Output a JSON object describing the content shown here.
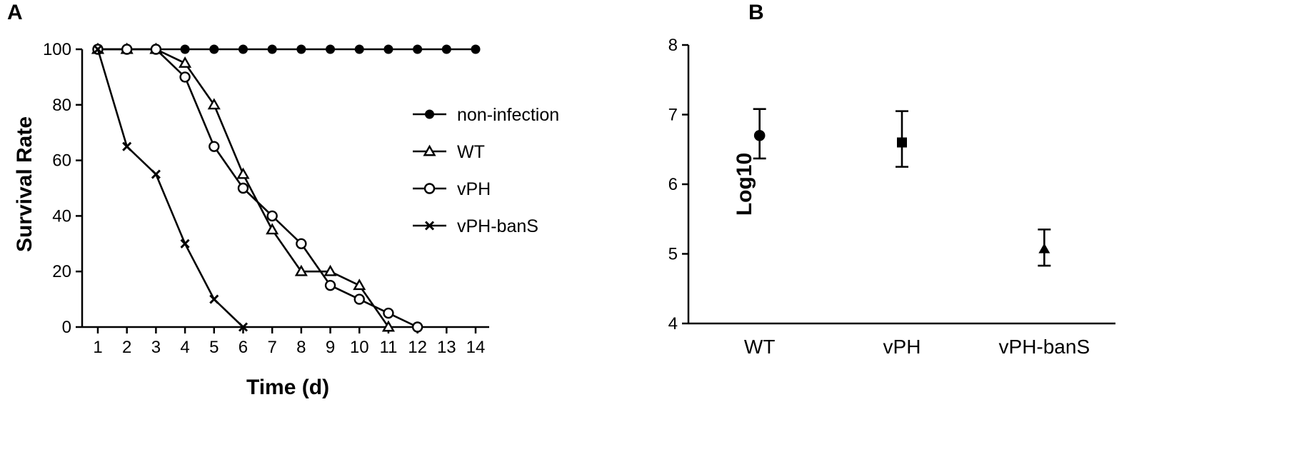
{
  "chart_data": [
    {
      "panel": "A",
      "type": "line",
      "xlabel": "Time (d)",
      "ylabel": "Survival Rate",
      "xlim": [
        1,
        14
      ],
      "ylim": [
        0,
        100
      ],
      "x_ticks": [
        "1",
        "2",
        "3",
        "4",
        "5",
        "6",
        "7",
        "8",
        "9",
        "10",
        "11",
        "12",
        "13",
        "14"
      ],
      "y_ticks": [
        "0",
        "20",
        "40",
        "60",
        "80",
        "100"
      ],
      "grid": false,
      "legend_position": "right",
      "series": [
        {
          "name": "non-infection",
          "marker": "filled-circle",
          "x": [
            1,
            2,
            3,
            4,
            5,
            6,
            7,
            8,
            9,
            10,
            11,
            12,
            13,
            14
          ],
          "y": [
            100,
            100,
            100,
            100,
            100,
            100,
            100,
            100,
            100,
            100,
            100,
            100,
            100,
            100
          ]
        },
        {
          "name": "WT",
          "marker": "open-triangle",
          "x": [
            1,
            2,
            3,
            4,
            5,
            6,
            7,
            8,
            9,
            10,
            11
          ],
          "y": [
            100,
            100,
            100,
            95,
            80,
            55,
            35,
            20,
            20,
            15,
            0
          ]
        },
        {
          "name": "vPH",
          "marker": "open-circle",
          "x": [
            1,
            2,
            3,
            4,
            5,
            6,
            7,
            8,
            9,
            10,
            11,
            12
          ],
          "y": [
            100,
            100,
            100,
            90,
            65,
            50,
            40,
            30,
            15,
            10,
            5,
            0
          ]
        },
        {
          "name": "vPH-banS",
          "marker": "x",
          "x": [
            1,
            2,
            3,
            4,
            5,
            6
          ],
          "y": [
            100,
            65,
            55,
            30,
            10,
            0
          ]
        }
      ]
    },
    {
      "panel": "B",
      "type": "scatter",
      "xlabel": "",
      "ylabel": "Log10",
      "ylim": [
        4,
        8
      ],
      "y_ticks": [
        "4",
        "5",
        "6",
        "7",
        "8"
      ],
      "categories": [
        "WT",
        "vPH",
        "vPH-banS"
      ],
      "grid": false,
      "points": [
        {
          "category": "WT",
          "marker": "filled-circle",
          "mean": 6.7,
          "upper": 7.08,
          "lower": 6.37
        },
        {
          "category": "vPH",
          "marker": "filled-square",
          "mean": 6.6,
          "upper": 7.05,
          "lower": 6.25
        },
        {
          "category": "vPH-banS",
          "marker": "filled-triangle",
          "mean": 5.07,
          "upper": 5.35,
          "lower": 4.83
        }
      ]
    }
  ]
}
